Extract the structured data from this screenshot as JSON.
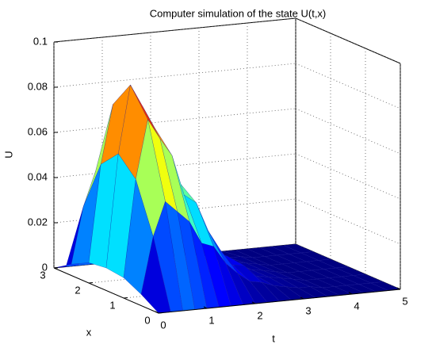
{
  "chart_data": {
    "type": "surface",
    "title": "Computer simulation of the state U(t,x)",
    "t_label": "t",
    "x_label": "x",
    "z_label": "U",
    "t": [
      0,
      0.25,
      0.5,
      0.75,
      1,
      1.25,
      1.5,
      1.75,
      2,
      2.25,
      2.5,
      2.75,
      3,
      3.25,
      3.5,
      3.75,
      4,
      4.25,
      4.5,
      4.75,
      5
    ],
    "x": [
      0,
      0.5,
      1,
      1.5,
      2,
      2.5,
      3
    ],
    "z": [
      [
        0,
        0.005,
        0.009,
        0.01,
        0.009,
        0.005,
        0
      ],
      [
        0,
        0.03,
        0.052,
        0.06,
        0.052,
        0.03,
        0
      ],
      [
        0,
        0.045,
        0.078,
        0.09,
        0.078,
        0.045,
        0
      ],
      [
        0,
        0.04,
        0.069,
        0.08,
        0.069,
        0.04,
        0
      ],
      [
        0,
        0.035,
        0.061,
        0.07,
        0.061,
        0.035,
        0
      ],
      [
        0,
        0.025,
        0.043,
        0.05,
        0.043,
        0.025,
        0
      ],
      [
        0,
        0.023,
        0.039,
        0.045,
        0.039,
        0.023,
        0
      ],
      [
        0,
        0.015,
        0.026,
        0.03,
        0.026,
        0.015,
        0
      ],
      [
        0,
        0.01,
        0.017,
        0.02,
        0.017,
        0.01,
        0
      ],
      [
        0,
        0.006,
        0.01,
        0.012,
        0.01,
        0.006,
        0
      ],
      [
        0,
        0.005,
        0.009,
        0.01,
        0.009,
        0.005,
        0
      ],
      [
        0,
        0.003,
        0.004,
        0.005,
        0.004,
        0.003,
        0
      ],
      [
        0,
        0.002,
        0.003,
        0.003,
        0.003,
        0.002,
        0
      ],
      [
        0,
        0.001,
        0.002,
        0.002,
        0.002,
        0.001,
        0
      ],
      [
        0,
        0.001,
        0.001,
        0.001,
        0.001,
        0.001,
        0
      ],
      [
        0,
        0,
        0,
        0,
        0,
        0,
        0
      ],
      [
        0,
        0,
        0,
        0,
        0,
        0,
        0
      ],
      [
        0,
        0,
        0,
        0,
        0,
        0,
        0
      ],
      [
        0,
        0,
        0,
        0,
        0,
        0,
        0
      ],
      [
        0,
        0,
        0,
        0,
        0,
        0,
        0
      ],
      [
        0,
        0,
        0,
        0,
        0,
        0,
        0
      ]
    ],
    "tlim": [
      0,
      5
    ],
    "tticks": [
      0,
      1,
      2,
      3,
      4,
      5
    ],
    "xlim": [
      0,
      3
    ],
    "xticks": [
      0,
      1,
      2,
      3
    ],
    "zlim": [
      0,
      0.1
    ],
    "zticks": [
      0,
      0.02,
      0.04,
      0.06,
      0.08,
      0.1
    ],
    "grid": true,
    "colormap": "jet"
  }
}
